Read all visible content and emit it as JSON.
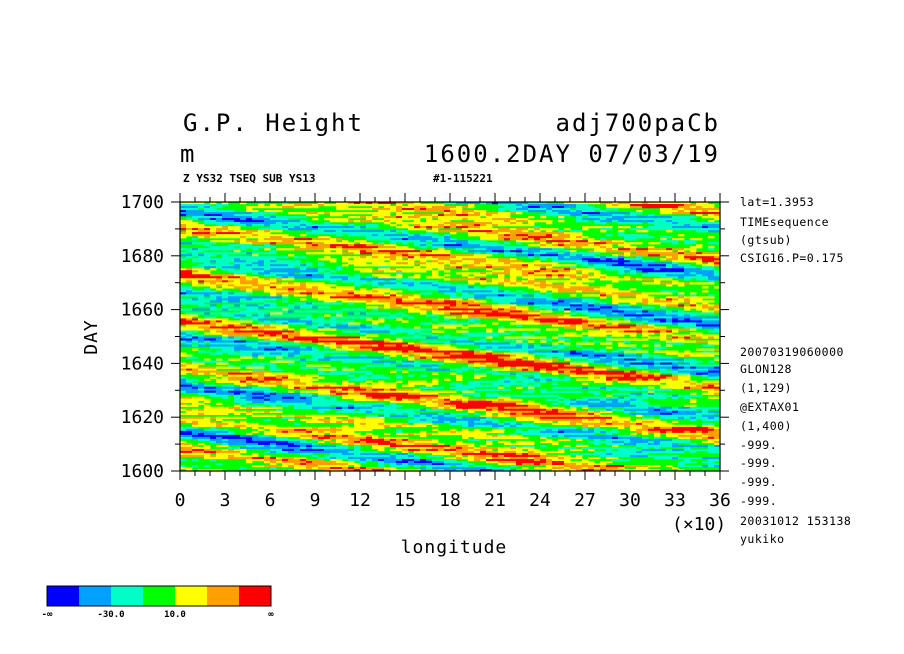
{
  "header": {
    "title_left": "G.P. Height",
    "title_right": "adj700paCb",
    "unit": "m",
    "time": "1600.2DAY 07/03/19",
    "sub_left": "Z YS32 TSEQ SUB YS13",
    "sub_right": "#1-115221"
  },
  "chart_data": {
    "type": "heatmap",
    "xlabel": "longitude",
    "ylabel": "DAY",
    "x_multiplier_label": "(×10)",
    "x_ticks": [
      "0",
      "3",
      "6",
      "9",
      "12",
      "15",
      "18",
      "21",
      "24",
      "27",
      "30",
      "33",
      "36"
    ],
    "y_ticks": [
      "1600",
      "1620",
      "1640",
      "1660",
      "1680",
      "1700"
    ],
    "xlim": [
      0,
      36
    ],
    "ylim": [
      1600,
      1700
    ],
    "colorbar": {
      "colors": [
        "#0000ff",
        "#00a0ff",
        "#00ffc8",
        "#00ff00",
        "#ffff00",
        "#ffa000",
        "#ff0000"
      ],
      "labels": [
        "-∞",
        "-30.0",
        "10.0",
        "∞"
      ]
    }
  },
  "info_lines": [
    "lat=1.3953",
    "TIMEsequence",
    "(gtsub)",
    "CSIG16.P=0.175",
    "20070319060000",
    "GLON128",
    "(1,129)",
    "@EXTAX01",
    "(1,400)",
    "-999.",
    "-999.",
    "-999.",
    "-999.",
    "20031012 153138",
    "yukiko"
  ]
}
